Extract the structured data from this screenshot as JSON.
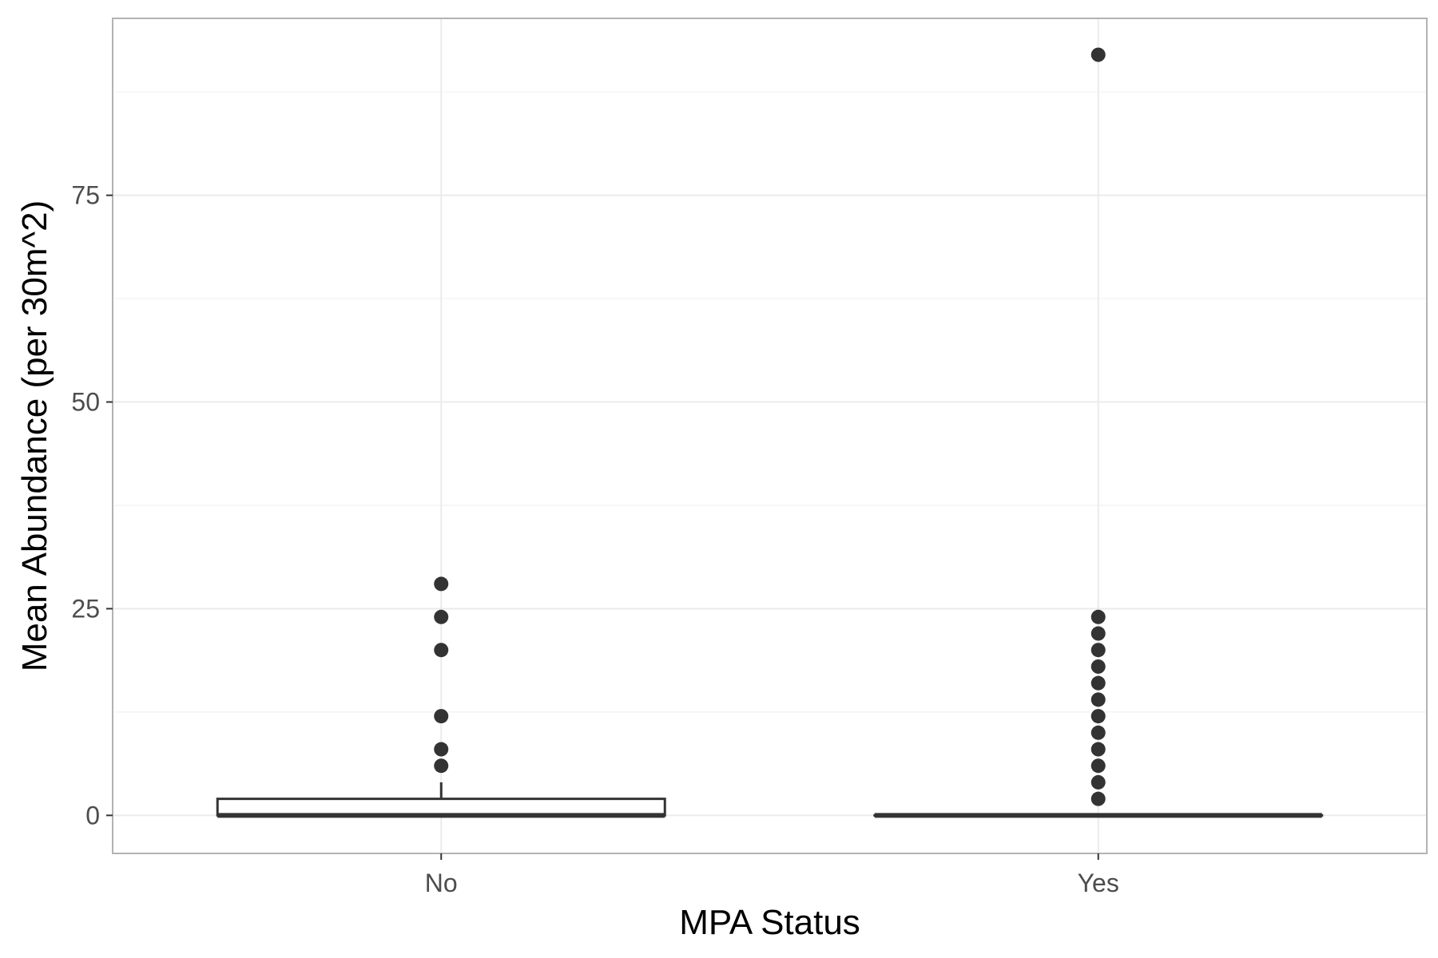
{
  "chart_data": {
    "type": "boxplot",
    "title": "",
    "xlabel": "MPA Status",
    "ylabel": "Mean Abundance (per 30m^2)",
    "categories": [
      "No",
      "Yes"
    ],
    "ylim": [
      -4.6,
      96.4
    ],
    "yticks": [
      0,
      25,
      50,
      75
    ],
    "ytick_labels": [
      "0",
      "25",
      "50",
      "75"
    ],
    "grid": true,
    "legend": "none",
    "boxes": [
      {
        "category": "No",
        "min": 0,
        "q1": 0,
        "median": 0,
        "q3": 2,
        "max": 4,
        "outliers": [
          6,
          8,
          12,
          20,
          24,
          28
        ]
      },
      {
        "category": "Yes",
        "min": 0,
        "q1": 0,
        "median": 0,
        "q3": 0,
        "max": 0,
        "outliers": [
          2,
          4,
          6,
          8,
          10,
          12,
          14,
          16,
          18,
          20,
          22,
          24,
          92
        ]
      }
    ],
    "colors": {
      "box_line": "#333333",
      "box_fill": "#ffffff",
      "point": "#333333",
      "grid": "#ebebeb",
      "panel_border": "#b3b3b3"
    }
  }
}
